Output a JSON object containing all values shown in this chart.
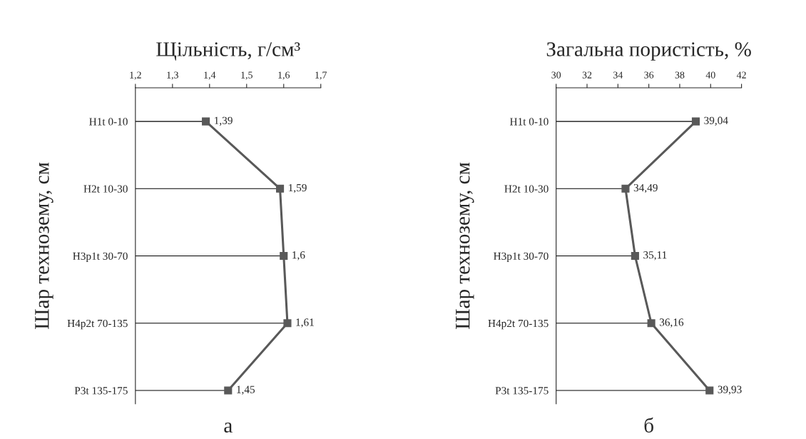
{
  "chart_data": [
    {
      "type": "line",
      "orientation": "horizontal",
      "title": "Щільність, г/см³",
      "ylabel": "Шар технозему, см",
      "categories": [
        "H1t 0-10",
        "H2t 10-30",
        "H3p1t 30-70",
        "H4p2t 70-135",
        "P3t 135-175"
      ],
      "series": [
        {
          "color": "#595959",
          "values": [
            1.39,
            1.59,
            1.6,
            1.61,
            1.45
          ],
          "value_labels": [
            "1,39",
            "1,59",
            "1,6",
            "1,61",
            "1,45"
          ]
        }
      ],
      "xlim": [
        1.2,
        1.7
      ],
      "xticks": [
        {
          "value": 1.2,
          "label": "1,2"
        },
        {
          "value": 1.3,
          "label": "1,3"
        },
        {
          "value": 1.4,
          "label": "1,4"
        },
        {
          "value": 1.5,
          "label": "1,5"
        },
        {
          "value": 1.6,
          "label": "1,6"
        },
        {
          "value": 1.7,
          "label": "1,7"
        }
      ],
      "marker": "square",
      "line_style": "solid",
      "grid": "y",
      "legend": false,
      "annotations": [
        "а"
      ]
    },
    {
      "type": "line",
      "orientation": "horizontal",
      "title": "Загальна пористість, %",
      "ylabel": "Шар технозему, см",
      "categories": [
        "H1t 0-10",
        "H2t 10-30",
        "H3p1t 30-70",
        "H4p2t 70-135",
        "P3t 135-175"
      ],
      "series": [
        {
          "color": "#595959",
          "values": [
            39.04,
            34.49,
            35.11,
            36.16,
            39.93
          ],
          "value_labels": [
            "39,04",
            "34,49",
            "35,11",
            "36,16",
            "39,93"
          ]
        }
      ],
      "xlim": [
        30,
        42
      ],
      "xticks": [
        30,
        32,
        34,
        36,
        38,
        40,
        42
      ],
      "marker": "square",
      "line_style": "solid",
      "grid": "y",
      "legend": false,
      "annotations": [
        "б"
      ]
    }
  ]
}
